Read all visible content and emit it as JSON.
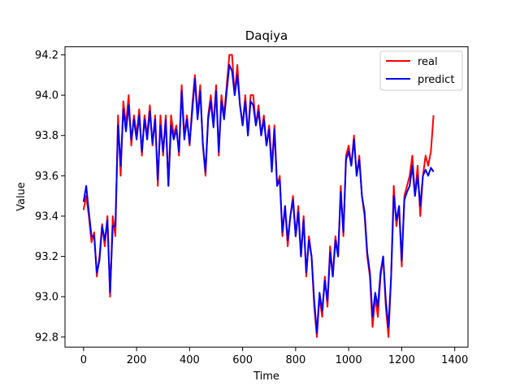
{
  "chart_data": {
    "type": "line",
    "title": "Daqiya",
    "xlabel": "Time",
    "ylabel": "Value",
    "xlim": [
      -70,
      1450
    ],
    "ylim": [
      92.75,
      94.24
    ],
    "xticks": [
      0,
      200,
      400,
      600,
      800,
      1000,
      1200,
      1400
    ],
    "yticks": [
      92.8,
      93.0,
      93.2,
      93.4,
      93.6,
      93.8,
      94.0,
      94.2
    ],
    "grid": false,
    "legend": "top-right",
    "series": [
      {
        "name": "real",
        "color": "#ff0000",
        "points": [
          [
            0,
            93.43
          ],
          [
            10,
            93.5
          ],
          [
            20,
            93.4
          ],
          [
            30,
            93.27
          ],
          [
            40,
            93.32
          ],
          [
            50,
            93.1
          ],
          [
            60,
            93.2
          ],
          [
            70,
            93.36
          ],
          [
            80,
            93.25
          ],
          [
            90,
            93.4
          ],
          [
            100,
            93.0
          ],
          [
            110,
            93.4
          ],
          [
            120,
            93.3
          ],
          [
            130,
            93.9
          ],
          [
            140,
            93.6
          ],
          [
            150,
            93.97
          ],
          [
            160,
            93.85
          ],
          [
            170,
            94.0
          ],
          [
            180,
            93.75
          ],
          [
            190,
            93.9
          ],
          [
            200,
            93.8
          ],
          [
            210,
            93.93
          ],
          [
            220,
            93.7
          ],
          [
            230,
            93.9
          ],
          [
            240,
            93.8
          ],
          [
            250,
            93.95
          ],
          [
            260,
            93.75
          ],
          [
            270,
            93.9
          ],
          [
            280,
            93.55
          ],
          [
            290,
            93.9
          ],
          [
            300,
            93.7
          ],
          [
            310,
            93.9
          ],
          [
            320,
            93.55
          ],
          [
            330,
            93.9
          ],
          [
            340,
            93.8
          ],
          [
            350,
            93.85
          ],
          [
            360,
            93.7
          ],
          [
            370,
            94.05
          ],
          [
            380,
            93.8
          ],
          [
            390,
            93.9
          ],
          [
            400,
            93.75
          ],
          [
            410,
            93.95
          ],
          [
            420,
            94.1
          ],
          [
            430,
            93.9
          ],
          [
            440,
            94.05
          ],
          [
            450,
            93.75
          ],
          [
            460,
            93.6
          ],
          [
            470,
            93.9
          ],
          [
            480,
            94.0
          ],
          [
            490,
            93.85
          ],
          [
            500,
            94.05
          ],
          [
            510,
            93.7
          ],
          [
            520,
            94.0
          ],
          [
            530,
            93.9
          ],
          [
            540,
            94.05
          ],
          [
            550,
            94.2
          ],
          [
            560,
            94.2
          ],
          [
            570,
            94.0
          ],
          [
            580,
            94.15
          ],
          [
            590,
            93.95
          ],
          [
            600,
            93.85
          ],
          [
            610,
            94.0
          ],
          [
            620,
            93.8
          ],
          [
            630,
            94.0
          ],
          [
            640,
            94.0
          ],
          [
            650,
            93.85
          ],
          [
            660,
            93.95
          ],
          [
            670,
            93.8
          ],
          [
            680,
            93.9
          ],
          [
            690,
            93.75
          ],
          [
            700,
            93.85
          ],
          [
            710,
            93.65
          ],
          [
            720,
            93.85
          ],
          [
            730,
            93.55
          ],
          [
            740,
            93.6
          ],
          [
            750,
            93.3
          ],
          [
            760,
            93.45
          ],
          [
            770,
            93.25
          ],
          [
            780,
            93.4
          ],
          [
            790,
            93.5
          ],
          [
            800,
            93.3
          ],
          [
            810,
            93.45
          ],
          [
            820,
            93.2
          ],
          [
            830,
            93.4
          ],
          [
            840,
            93.1
          ],
          [
            850,
            93.3
          ],
          [
            860,
            93.2
          ],
          [
            870,
            92.95
          ],
          [
            880,
            92.8
          ],
          [
            890,
            93.0
          ],
          [
            900,
            92.9
          ],
          [
            910,
            93.1
          ],
          [
            920,
            92.95
          ],
          [
            930,
            93.25
          ],
          [
            940,
            93.1
          ],
          [
            950,
            93.3
          ],
          [
            960,
            93.2
          ],
          [
            970,
            93.55
          ],
          [
            980,
            93.3
          ],
          [
            990,
            93.7
          ],
          [
            1000,
            93.75
          ],
          [
            1010,
            93.65
          ],
          [
            1020,
            93.8
          ],
          [
            1030,
            93.6
          ],
          [
            1040,
            93.7
          ],
          [
            1050,
            93.5
          ],
          [
            1060,
            93.4
          ],
          [
            1070,
            93.2
          ],
          [
            1080,
            93.1
          ],
          [
            1090,
            92.85
          ],
          [
            1100,
            93.0
          ],
          [
            1110,
            92.9
          ],
          [
            1120,
            93.1
          ],
          [
            1130,
            93.2
          ],
          [
            1140,
            92.95
          ],
          [
            1150,
            92.8
          ],
          [
            1160,
            93.1
          ],
          [
            1170,
            93.55
          ],
          [
            1180,
            93.35
          ],
          [
            1190,
            93.45
          ],
          [
            1200,
            93.15
          ],
          [
            1210,
            93.5
          ],
          [
            1220,
            93.55
          ],
          [
            1230,
            93.6
          ],
          [
            1240,
            93.7
          ],
          [
            1250,
            93.5
          ],
          [
            1260,
            93.65
          ],
          [
            1270,
            93.4
          ],
          [
            1280,
            93.6
          ],
          [
            1290,
            93.7
          ],
          [
            1300,
            93.65
          ],
          [
            1310,
            93.72
          ],
          [
            1320,
            93.9
          ]
        ]
      },
      {
        "name": "predict",
        "color": "#0000ff",
        "points": [
          [
            0,
            93.47
          ],
          [
            10,
            93.55
          ],
          [
            20,
            93.42
          ],
          [
            30,
            93.3
          ],
          [
            40,
            93.3
          ],
          [
            50,
            93.12
          ],
          [
            60,
            93.18
          ],
          [
            70,
            93.35
          ],
          [
            80,
            93.28
          ],
          [
            90,
            93.38
          ],
          [
            100,
            93.02
          ],
          [
            110,
            93.35
          ],
          [
            120,
            93.35
          ],
          [
            130,
            93.85
          ],
          [
            140,
            93.65
          ],
          [
            150,
            93.93
          ],
          [
            160,
            93.82
          ],
          [
            170,
            93.95
          ],
          [
            180,
            93.78
          ],
          [
            190,
            93.88
          ],
          [
            200,
            93.78
          ],
          [
            210,
            93.9
          ],
          [
            220,
            93.72
          ],
          [
            230,
            93.88
          ],
          [
            240,
            93.78
          ],
          [
            250,
            93.92
          ],
          [
            260,
            93.76
          ],
          [
            270,
            93.88
          ],
          [
            280,
            93.58
          ],
          [
            290,
            93.85
          ],
          [
            300,
            93.72
          ],
          [
            310,
            93.88
          ],
          [
            320,
            93.55
          ],
          [
            330,
            93.85
          ],
          [
            340,
            93.78
          ],
          [
            350,
            93.83
          ],
          [
            360,
            93.72
          ],
          [
            370,
            94.02
          ],
          [
            380,
            93.78
          ],
          [
            390,
            93.88
          ],
          [
            400,
            93.76
          ],
          [
            410,
            93.92
          ],
          [
            420,
            94.08
          ],
          [
            430,
            93.88
          ],
          [
            440,
            94.02
          ],
          [
            450,
            93.76
          ],
          [
            460,
            93.62
          ],
          [
            470,
            93.88
          ],
          [
            480,
            93.97
          ],
          [
            490,
            93.84
          ],
          [
            500,
            94.02
          ],
          [
            510,
            93.72
          ],
          [
            520,
            93.97
          ],
          [
            530,
            93.88
          ],
          [
            540,
            94.02
          ],
          [
            550,
            94.15
          ],
          [
            560,
            94.12
          ],
          [
            570,
            94.0
          ],
          [
            580,
            94.1
          ],
          [
            590,
            93.95
          ],
          [
            600,
            93.85
          ],
          [
            610,
            93.97
          ],
          [
            620,
            93.8
          ],
          [
            630,
            93.97
          ],
          [
            640,
            93.95
          ],
          [
            650,
            93.85
          ],
          [
            660,
            93.92
          ],
          [
            670,
            93.8
          ],
          [
            680,
            93.88
          ],
          [
            690,
            93.75
          ],
          [
            700,
            93.83
          ],
          [
            710,
            93.62
          ],
          [
            720,
            93.83
          ],
          [
            730,
            93.55
          ],
          [
            740,
            93.58
          ],
          [
            750,
            93.32
          ],
          [
            760,
            93.45
          ],
          [
            770,
            93.28
          ],
          [
            780,
            93.4
          ],
          [
            790,
            93.48
          ],
          [
            800,
            93.3
          ],
          [
            810,
            93.42
          ],
          [
            820,
            93.2
          ],
          [
            830,
            93.38
          ],
          [
            840,
            93.12
          ],
          [
            850,
            93.28
          ],
          [
            860,
            93.2
          ],
          [
            870,
            92.98
          ],
          [
            880,
            92.82
          ],
          [
            890,
            93.02
          ],
          [
            900,
            92.93
          ],
          [
            910,
            93.08
          ],
          [
            920,
            92.98
          ],
          [
            930,
            93.22
          ],
          [
            940,
            93.1
          ],
          [
            950,
            93.28
          ],
          [
            960,
            93.2
          ],
          [
            970,
            93.52
          ],
          [
            980,
            93.32
          ],
          [
            990,
            93.68
          ],
          [
            1000,
            93.72
          ],
          [
            1010,
            93.65
          ],
          [
            1020,
            93.78
          ],
          [
            1030,
            93.6
          ],
          [
            1040,
            93.68
          ],
          [
            1050,
            93.5
          ],
          [
            1060,
            93.42
          ],
          [
            1070,
            93.22
          ],
          [
            1080,
            93.12
          ],
          [
            1090,
            92.9
          ],
          [
            1100,
            93.02
          ],
          [
            1110,
            92.95
          ],
          [
            1120,
            93.12
          ],
          [
            1130,
            93.2
          ],
          [
            1140,
            92.98
          ],
          [
            1150,
            92.85
          ],
          [
            1160,
            93.1
          ],
          [
            1170,
            93.5
          ],
          [
            1180,
            93.38
          ],
          [
            1190,
            93.45
          ],
          [
            1200,
            93.18
          ],
          [
            1210,
            93.48
          ],
          [
            1220,
            93.52
          ],
          [
            1230,
            93.55
          ],
          [
            1240,
            93.65
          ],
          [
            1250,
            93.5
          ],
          [
            1260,
            93.6
          ],
          [
            1270,
            93.45
          ],
          [
            1280,
            93.6
          ],
          [
            1290,
            93.63
          ],
          [
            1300,
            93.6
          ],
          [
            1310,
            93.64
          ],
          [
            1320,
            93.62
          ]
        ]
      }
    ]
  }
}
